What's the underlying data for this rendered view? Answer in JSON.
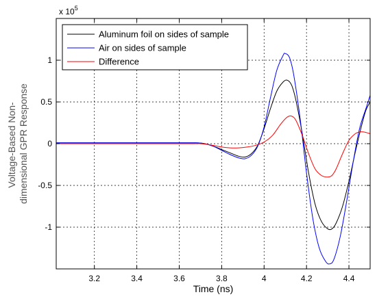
{
  "chart_data": {
    "type": "line",
    "xlabel": "Time (ns)",
    "ylabel_lines": [
      "Voltage-Based Non-",
      "dimensional GPR Response"
    ],
    "exponent_label": {
      "base": "x 10",
      "power": "5"
    },
    "xlim": [
      3.02,
      4.5
    ],
    "ylim": [
      -1.5,
      1.5
    ],
    "y_scale_factor": 100000,
    "x_ticks": [
      3.2,
      3.4,
      3.6,
      3.8,
      4.0,
      4.2,
      4.4
    ],
    "x_tick_labels": [
      "3.2",
      "3.4",
      "3.6",
      "3.8",
      "4",
      "4.2",
      "4.4"
    ],
    "y_ticks": [
      -1,
      -0.5,
      0,
      0.5,
      1
    ],
    "y_tick_labels": [
      "-1",
      "-0.5",
      "0",
      "0.5",
      "1"
    ],
    "grid": true,
    "legend_position": "top-left",
    "series": [
      {
        "name": "Aluminum foil on sides of sample",
        "color": "#000000",
        "x": [
          3.02,
          3.6,
          3.68,
          3.72,
          3.76,
          3.8,
          3.84,
          3.88,
          3.91,
          3.94,
          3.97,
          4.0,
          4.03,
          4.06,
          4.09,
          4.11,
          4.13,
          4.15,
          4.18,
          4.21,
          4.24,
          4.27,
          4.3,
          4.32,
          4.34,
          4.37,
          4.4,
          4.43,
          4.46,
          4.48,
          4.5
        ],
        "y": [
          0.01,
          0.01,
          0.01,
          0.0,
          -0.03,
          -0.07,
          -0.11,
          -0.15,
          -0.16,
          -0.12,
          -0.02,
          0.18,
          0.42,
          0.63,
          0.74,
          0.76,
          0.7,
          0.52,
          0.12,
          -0.35,
          -0.72,
          -0.93,
          -1.02,
          -1.02,
          -0.95,
          -0.75,
          -0.45,
          -0.1,
          0.22,
          0.4,
          0.5
        ]
      },
      {
        "name": "Air on sides of sample",
        "color": "#0000ff",
        "x": [
          3.02,
          3.6,
          3.68,
          3.72,
          3.76,
          3.8,
          3.84,
          3.88,
          3.91,
          3.94,
          3.97,
          4.0,
          4.03,
          4.06,
          4.09,
          4.1,
          4.12,
          4.14,
          4.17,
          4.2,
          4.23,
          4.26,
          4.29,
          4.31,
          4.33,
          4.36,
          4.39,
          4.42,
          4.45,
          4.48,
          4.5
        ],
        "y": [
          0.01,
          0.01,
          0.01,
          0.0,
          -0.03,
          -0.08,
          -0.13,
          -0.17,
          -0.18,
          -0.14,
          -0.03,
          0.2,
          0.55,
          0.88,
          1.06,
          1.08,
          1.03,
          0.82,
          0.3,
          -0.35,
          -0.9,
          -1.25,
          -1.41,
          -1.44,
          -1.38,
          -1.1,
          -0.68,
          -0.22,
          0.18,
          0.42,
          0.58
        ]
      },
      {
        "name": "Difference",
        "color": "#ff0000",
        "x": [
          3.02,
          3.6,
          3.7,
          3.76,
          3.8,
          3.84,
          3.88,
          3.92,
          3.96,
          4.0,
          4.04,
          4.08,
          4.11,
          4.13,
          4.15,
          4.18,
          4.21,
          4.24,
          4.27,
          4.3,
          4.32,
          4.34,
          4.37,
          4.4,
          4.43,
          4.45,
          4.47,
          4.5
        ],
        "y": [
          0.0,
          0.0,
          0.0,
          -0.02,
          -0.04,
          -0.05,
          -0.05,
          -0.04,
          -0.02,
          0.02,
          0.1,
          0.24,
          0.32,
          0.33,
          0.28,
          0.1,
          -0.12,
          -0.3,
          -0.38,
          -0.4,
          -0.38,
          -0.3,
          -0.12,
          0.04,
          0.12,
          0.14,
          0.14,
          0.12
        ]
      }
    ]
  }
}
